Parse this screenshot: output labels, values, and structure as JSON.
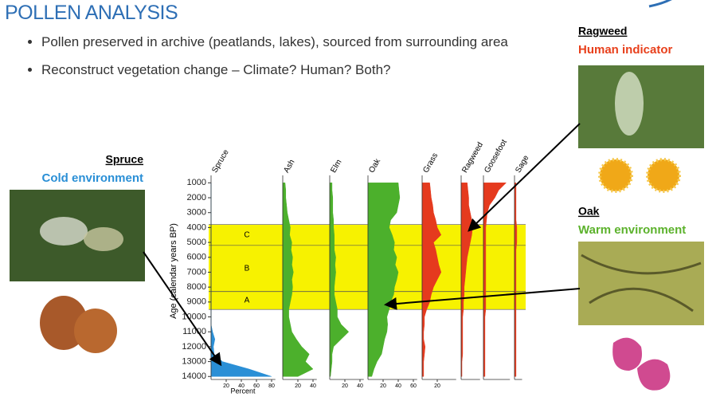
{
  "title": "POLLEN ANALYSIS",
  "bullets": [
    "Pollen preserved in archive (peatlands, lakes), sourced from surrounding area",
    "Reconstruct vegetation change – Climate? Human? Both?"
  ],
  "callouts": [
    {
      "name": "Spruce",
      "note": "Cold environment",
      "note_color": "#2a8fd6"
    },
    {
      "name": "Ragweed",
      "note": "Human indicator",
      "note_color": "#e8401c"
    },
    {
      "name": "Oak",
      "note": "Warm environment",
      "note_color": "#5cb22c"
    }
  ],
  "chart_data": {
    "type": "pollen-area",
    "y_label": "Age (calendar years BP)",
    "x_label": "Percent",
    "x": [
      1000,
      1500,
      2000,
      2500,
      3000,
      3500,
      4000,
      4500,
      5000,
      5500,
      6000,
      6500,
      7000,
      7500,
      8000,
      8500,
      9000,
      9500,
      10000,
      10500,
      11000,
      11500,
      12000,
      12500,
      13000,
      13500,
      14000
    ],
    "ylim": [
      500,
      14200
    ],
    "y_inverted": true,
    "yticks": [
      1000,
      2000,
      3000,
      4000,
      5000,
      6000,
      7000,
      8000,
      9000,
      10000,
      11000,
      12000,
      13000,
      14000
    ],
    "zones": [
      {
        "label": "C",
        "from": 3800,
        "to": 5200
      },
      {
        "label": "B",
        "from": 5200,
        "to": 8300
      },
      {
        "label": "A",
        "from": 8300,
        "to": 9500
      }
    ],
    "zone_color": "#f7f200",
    "series": [
      {
        "name": "Spruce",
        "color": "#2a8fd6",
        "xlim": [
          0,
          85
        ],
        "xticks": [
          20,
          40,
          60,
          80
        ],
        "values": [
          0,
          0,
          0,
          0,
          0,
          0,
          0,
          0,
          0,
          0,
          0,
          0,
          0,
          0,
          0,
          0,
          0,
          0,
          0,
          0,
          2,
          5,
          3,
          4,
          15,
          50,
          80
        ]
      },
      {
        "name": "Ash",
        "color": "#4cb02c",
        "xlim": [
          0,
          45
        ],
        "xticks": [
          20,
          40
        ],
        "values": [
          3,
          4,
          4,
          5,
          6,
          8,
          10,
          9,
          12,
          11,
          13,
          12,
          14,
          12,
          13,
          12,
          10,
          8,
          8,
          10,
          12,
          18,
          25,
          35,
          30,
          40,
          20
        ]
      },
      {
        "name": "Elm",
        "color": "#4cb02c",
        "xlim": [
          0,
          45
        ],
        "xticks": [
          20,
          40
        ],
        "values": [
          3,
          3,
          4,
          4,
          4,
          5,
          5,
          6,
          6,
          6,
          8,
          7,
          8,
          7,
          6,
          6,
          8,
          10,
          10,
          15,
          25,
          15,
          5,
          3,
          3,
          2,
          1
        ]
      },
      {
        "name": "Oak",
        "color": "#4cb02c",
        "xlim": [
          0,
          65
        ],
        "xticks": [
          20,
          40,
          60
        ],
        "values": [
          40,
          41,
          42,
          40,
          38,
          30,
          28,
          32,
          35,
          34,
          38,
          36,
          40,
          38,
          35,
          34,
          30,
          28,
          25,
          26,
          25,
          22,
          20,
          18,
          12,
          8,
          5
        ]
      },
      {
        "name": "Grass",
        "color": "#e53a1e",
        "xlim": [
          0,
          45
        ],
        "xticks": [
          20
        ],
        "values": [
          10,
          11,
          12,
          14,
          15,
          18,
          20,
          25,
          15,
          18,
          20,
          22,
          25,
          20,
          15,
          12,
          10,
          6,
          3,
          3,
          2,
          2,
          4,
          3,
          2,
          2,
          2
        ]
      },
      {
        "name": "Ragweed",
        "color": "#e53a1e",
        "xlim": [
          0,
          25
        ],
        "xticks": [],
        "values": [
          8,
          9,
          10,
          10,
          12,
          14,
          15,
          14,
          12,
          10,
          8,
          7,
          6,
          5,
          4,
          4,
          3,
          3,
          2,
          2,
          2,
          2,
          2,
          2,
          1,
          1,
          1
        ]
      },
      {
        "name": "Goosefoot",
        "color": "#e53a1e",
        "xlim": [
          0,
          35
        ],
        "xticks": [],
        "values": [
          30,
          20,
          15,
          8,
          5,
          4,
          3,
          3,
          3,
          3,
          3,
          3,
          3,
          3,
          3,
          3,
          3,
          3,
          2,
          2,
          2,
          2,
          2,
          2,
          2,
          2,
          2
        ]
      },
      {
        "name": "Sage",
        "color": "#e53a1e",
        "xlim": [
          0,
          10
        ],
        "xticks": [],
        "values": [
          2,
          2,
          2,
          2,
          2,
          2,
          3,
          3,
          3,
          2,
          2,
          2,
          2,
          2,
          2,
          2,
          2,
          2,
          2,
          2,
          2,
          2,
          2,
          2,
          2,
          2,
          2
        ]
      }
    ]
  }
}
